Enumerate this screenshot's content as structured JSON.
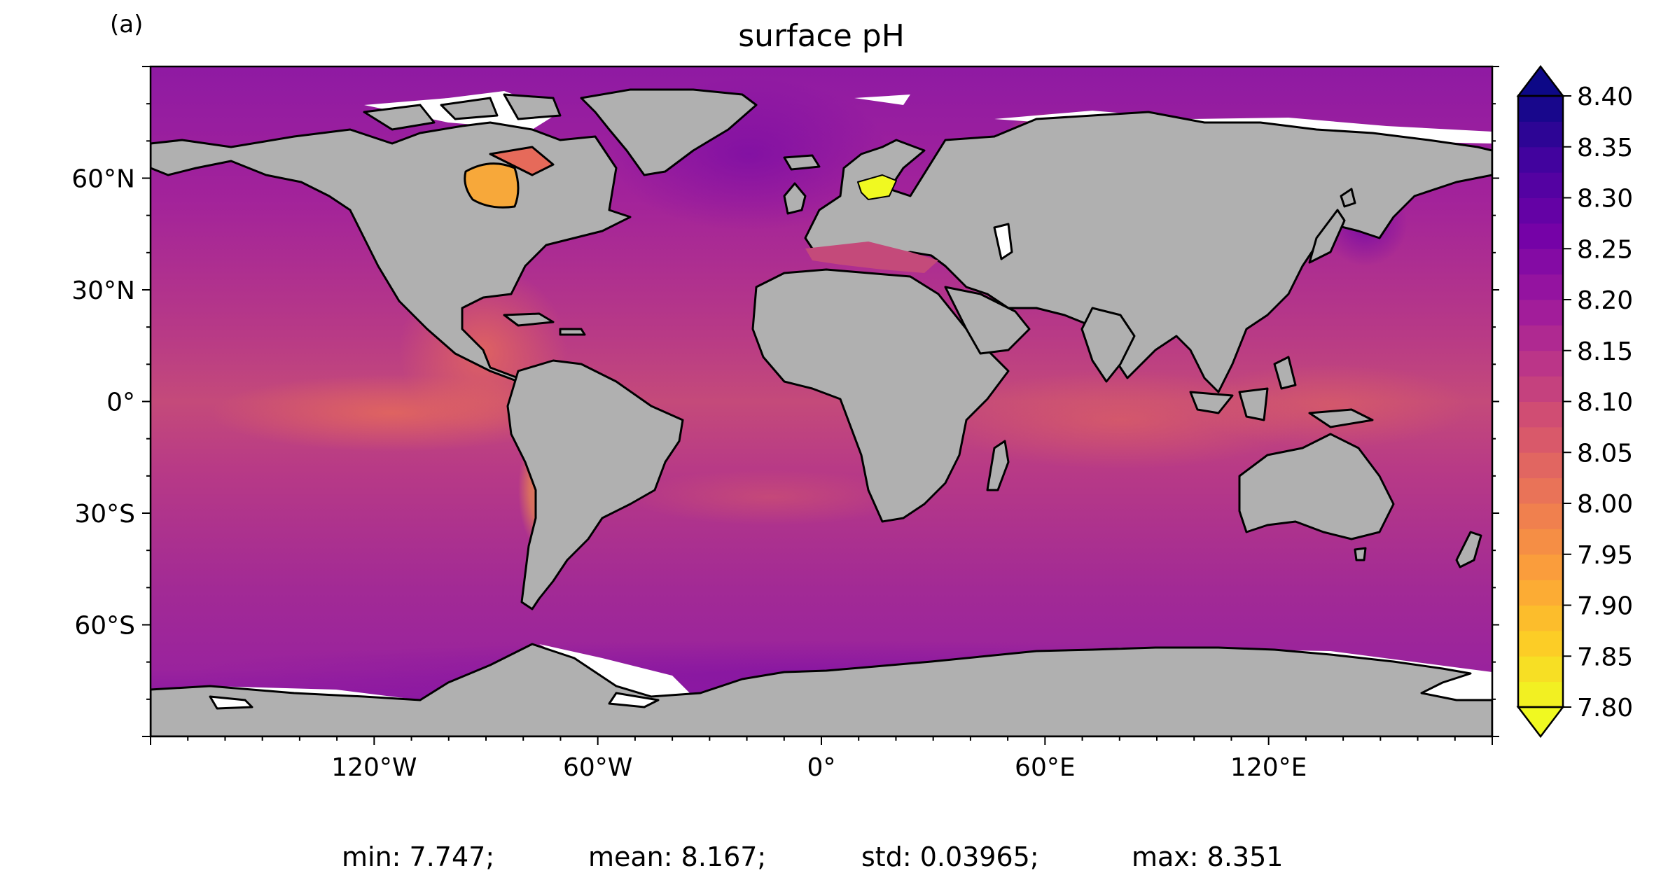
{
  "panel_label": "(a)",
  "title": "surface pH",
  "map": {
    "projection": "Plate Carree",
    "variable": "surface pH",
    "land_color": "#b0b0b0",
    "coastline_color": "#000000",
    "missing_color": "#ffffff",
    "lon_range": [
      -180,
      180
    ],
    "lat_range": [
      -90,
      90
    ],
    "lon_ticks": [
      {
        "value": -120,
        "label": "120°W"
      },
      {
        "value": -60,
        "label": "60°W"
      },
      {
        "value": 0,
        "label": "0°"
      },
      {
        "value": 60,
        "label": "60°E"
      },
      {
        "value": 120,
        "label": "120°E"
      }
    ],
    "lat_ticks": [
      {
        "value": 60,
        "label": "60°N"
      },
      {
        "value": 30,
        "label": "30°N"
      },
      {
        "value": 0,
        "label": "0°"
      },
      {
        "value": -30,
        "label": "30°S"
      },
      {
        "value": -60,
        "label": "60°S"
      }
    ]
  },
  "colorbar": {
    "colormap": "plasma_r",
    "range": [
      7.8,
      8.4
    ],
    "extend": "both",
    "tick_labels": [
      "8.40",
      "8.35",
      "8.30",
      "8.25",
      "8.20",
      "8.15",
      "8.10",
      "8.05",
      "8.00",
      "7.95",
      "7.90",
      "7.85",
      "7.80"
    ],
    "tick_values": [
      8.4,
      8.35,
      8.3,
      8.25,
      8.2,
      8.15,
      8.1,
      8.05,
      8.0,
      7.95,
      7.9,
      7.85,
      7.8
    ],
    "colors_low_to_high": [
      "#f0f921",
      "#fdca26",
      "#fb9f3a",
      "#ed7953",
      "#d8576b",
      "#bd3786",
      "#9c179e",
      "#7201a8",
      "#46039f",
      "#0d0887"
    ]
  },
  "stats": {
    "min_text": "min: 7.747;",
    "mean_text": "mean: 8.167;",
    "std_text": "std: 0.03965;",
    "max_text": "max: 8.351"
  }
}
